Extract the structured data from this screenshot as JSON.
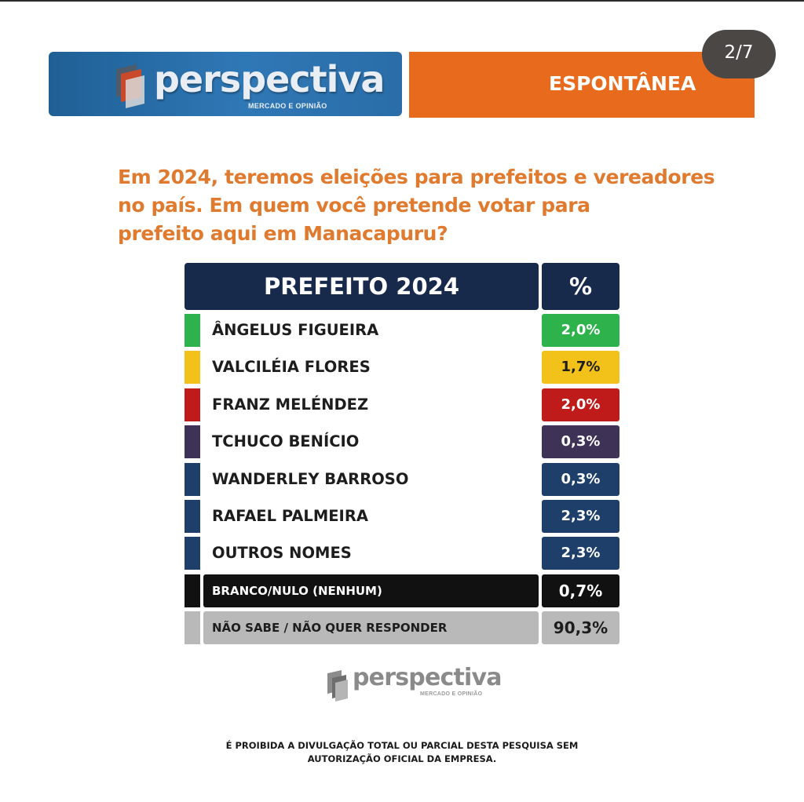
{
  "page_indicator": "2/7",
  "brand": {
    "name": "perspectiva",
    "tagline": "MERCADO E OPINIÃO"
  },
  "survey_type": "ESPONTÂNEA",
  "question_lines": [
    "Em 2024, teremos eleições para prefeitos e vereadores",
    "no país. Em quem você pretende votar para",
    "prefeito aqui em Manacapuru?"
  ],
  "table": {
    "header_name": "PREFEITO 2024",
    "header_pct": "%"
  },
  "colors": {
    "orange": "#e86b1d",
    "question_orange": "#e07a2e",
    "navy": "#182a4c",
    "blue_logo": "#2f78b6"
  },
  "chart_data": {
    "type": "table",
    "title": "PREFEITO 2024",
    "columns": [
      "PREFEITO 2024",
      "%"
    ],
    "rows": [
      {
        "name": "ÂNGELUS FIGUEIRA",
        "value": 2.0,
        "label": "2,0%",
        "color": "#2eb24b",
        "style": "plain"
      },
      {
        "name": "VALCILÉIA FLORES",
        "value": 1.7,
        "label": "1,7%",
        "color": "#f2c21b",
        "style": "plain"
      },
      {
        "name": "FRANZ MELÉNDEZ",
        "value": 2.0,
        "label": "2,0%",
        "color": "#c01b1b",
        "style": "plain"
      },
      {
        "name": "TCHUCO BENÍCIO",
        "value": 0.3,
        "label": "0,3%",
        "color": "#3e3257",
        "style": "plain"
      },
      {
        "name": "WANDERLEY BARROSO",
        "value": 0.3,
        "label": "0,3%",
        "color": "#1f3f6b",
        "style": "plain"
      },
      {
        "name": "RAFAEL PALMEIRA",
        "value": 2.3,
        "label": "2,3%",
        "color": "#1f3f6b",
        "style": "plain"
      },
      {
        "name": "OUTROS NOMES",
        "value": 2.3,
        "label": "2,3%",
        "color": "#1f3f6b",
        "style": "plain"
      },
      {
        "name": "BRANCO/NULO (NENHUM)",
        "value": 0.7,
        "label": "0,7%",
        "color": "#111111",
        "style": "dark"
      },
      {
        "name": "NÃO SABE / NÃO QUER RESPONDER",
        "value": 90.3,
        "label": "90,3%",
        "color": "#b9b9b9",
        "style": "gray"
      }
    ]
  },
  "disclaimer_lines": [
    "É PROIBIDA A DIVULGAÇÃO TOTAL OU PARCIAL DESTA PESQUISA SEM",
    "AUTORIZAÇÃO OFICIAL DA EMPRESA."
  ]
}
